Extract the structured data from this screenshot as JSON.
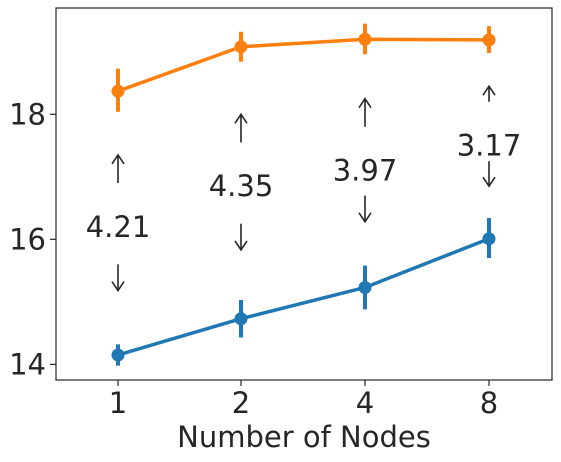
{
  "chart_data": {
    "type": "line",
    "title": "",
    "xlabel": "Number of Nodes",
    "ylabel": "",
    "categories": [
      "1",
      "2",
      "4",
      "8"
    ],
    "ylim": [
      13.75,
      19.7
    ],
    "yticks": [
      14,
      16,
      18
    ],
    "ytick_labels": [
      "14",
      "16",
      "18"
    ],
    "grid": false,
    "legend": "none",
    "series": [
      {
        "color": "#1f77b4",
        "values": [
          14.15,
          14.73,
          15.23,
          16.01
        ],
        "error_low": [
          13.98,
          14.43,
          14.88,
          15.7
        ],
        "error_high": [
          14.32,
          15.03,
          15.58,
          16.34
        ]
      },
      {
        "color": "#ff7f0e",
        "values": [
          18.37,
          19.08,
          19.2,
          19.19
        ],
        "error_low": [
          18.04,
          18.84,
          18.96,
          18.98
        ],
        "error_high": [
          18.73,
          19.32,
          19.45,
          19.41
        ]
      }
    ],
    "annotations": [
      {
        "category": "1",
        "text": "4.21",
        "text_y": 16.2,
        "arrow_up_y": [
          16.9,
          17.35
        ],
        "arrow_down_y": [
          15.18,
          15.6
        ]
      },
      {
        "category": "2",
        "text": "4.35",
        "text_y": 16.85,
        "arrow_up_y": [
          17.55,
          18.0
        ],
        "arrow_down_y": [
          15.83,
          16.25
        ]
      },
      {
        "category": "4",
        "text": "3.97",
        "text_y": 17.1,
        "arrow_up_y": [
          17.8,
          18.25
        ],
        "arrow_down_y": [
          16.28,
          16.7
        ]
      },
      {
        "category": "8",
        "text": "3.17",
        "text_y": 17.5,
        "arrow_up_y": [
          18.2,
          18.45
        ],
        "arrow_down_y": [
          16.85,
          17.25
        ]
      }
    ]
  }
}
